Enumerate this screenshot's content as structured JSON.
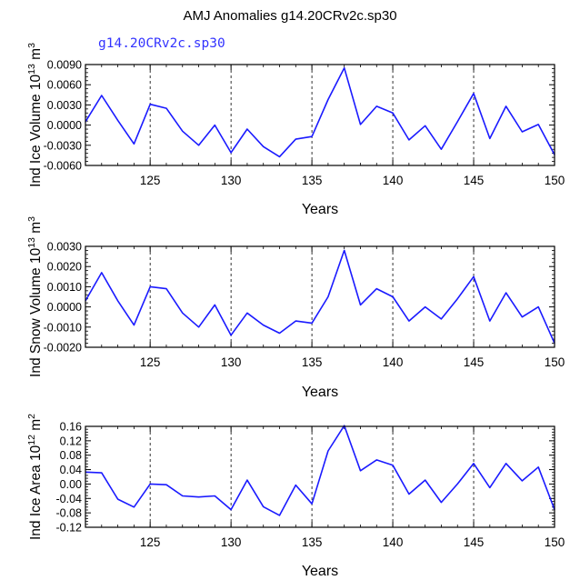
{
  "title": "AMJ Anomalies g14.20CRv2c.sp30",
  "colors": {
    "line": "#1a1aff",
    "legend": "#3333ff",
    "axis": "#000000",
    "gridline": "#000000"
  },
  "chart_data": [
    {
      "type": "line",
      "legend": "g14.20CRv2c.sp30",
      "ylabel_main": "Ind Ice Volume 10",
      "ylabel_exp": "13",
      "ylabel_unit": "m",
      "ylabel_unit_exp": "3",
      "xlabel": "Years",
      "xlim": [
        121,
        150
      ],
      "ylim": [
        -0.006,
        0.009
      ],
      "yticks": [
        -0.006,
        -0.003,
        0.0,
        0.003,
        0.006,
        0.009
      ],
      "ytick_labels": [
        "-0.0060",
        "-0.0030",
        "0.0000",
        "0.0030",
        "0.0060",
        "0.0090"
      ],
      "xticks": [
        125,
        130,
        135,
        140,
        145,
        150
      ],
      "xtick_labels": [
        "125",
        "130",
        "135",
        "140",
        "145",
        "150"
      ],
      "vlines": [
        125,
        130,
        135,
        140,
        145
      ],
      "series": [
        {
          "name": "g14.20CRv2c.sp30",
          "x": [
            121,
            122,
            123,
            124,
            125,
            126,
            127,
            128,
            129,
            130,
            131,
            132,
            133,
            134,
            135,
            136,
            137,
            138,
            139,
            140,
            141,
            142,
            143,
            144,
            145,
            146,
            147,
            148,
            149,
            150
          ],
          "values": [
            0.0005,
            0.0044,
            0.0007,
            -0.0028,
            0.0031,
            0.0025,
            -0.0009,
            -0.003,
            0.0,
            -0.0041,
            -0.0006,
            -0.0032,
            -0.0047,
            -0.0021,
            -0.0017,
            0.0038,
            0.0085,
            0.0001,
            0.0028,
            0.0018,
            -0.0022,
            -0.0001,
            -0.0036,
            0.0005,
            0.0047,
            -0.002,
            0.0028,
            -0.001,
            0.0001,
            -0.0044
          ]
        }
      ]
    },
    {
      "type": "line",
      "ylabel_main": "Ind Snow Volume 10",
      "ylabel_exp": "13",
      "ylabel_unit": "m",
      "ylabel_unit_exp": "3",
      "xlabel": "Years",
      "xlim": [
        121,
        150
      ],
      "ylim": [
        -0.002,
        0.003
      ],
      "yticks": [
        -0.002,
        -0.001,
        0.0,
        0.001,
        0.002,
        0.003
      ],
      "ytick_labels": [
        "-0.0020",
        "-0.0010",
        "0.0000",
        "0.0010",
        "0.0020",
        "0.0030"
      ],
      "xticks": [
        125,
        130,
        135,
        140,
        145,
        150
      ],
      "xtick_labels": [
        "125",
        "130",
        "135",
        "140",
        "145",
        "150"
      ],
      "vlines": [
        125,
        130,
        135,
        140,
        145
      ],
      "series": [
        {
          "name": "g14.20CRv2c.sp30",
          "x": [
            121,
            122,
            123,
            124,
            125,
            126,
            127,
            128,
            129,
            130,
            131,
            132,
            133,
            134,
            135,
            136,
            137,
            138,
            139,
            140,
            141,
            142,
            143,
            144,
            145,
            146,
            147,
            148,
            149,
            150
          ],
          "values": [
            0.0003,
            0.0017,
            0.0003,
            -0.0009,
            0.001,
            0.0009,
            -0.0003,
            -0.001,
            0.0001,
            -0.0014,
            -0.0003,
            -0.0009,
            -0.0013,
            -0.0007,
            -0.0008,
            0.0005,
            0.0028,
            0.0001,
            0.0009,
            0.0005,
            -0.0007,
            0.0,
            -0.0006,
            0.0004,
            0.0015,
            -0.0007,
            0.0007,
            -0.0005,
            0.0,
            -0.0018
          ]
        }
      ]
    },
    {
      "type": "line",
      "ylabel_main": "Ind Ice Area 10",
      "ylabel_exp": "12",
      "ylabel_unit": "m",
      "ylabel_unit_exp": "2",
      "xlabel": "Years",
      "xlim": [
        121,
        150
      ],
      "ylim": [
        -0.12,
        0.16
      ],
      "yticks": [
        -0.12,
        -0.08,
        -0.04,
        0.0,
        0.04,
        0.08,
        0.12,
        0.16
      ],
      "ytick_labels": [
        "-0.12",
        "-0.08",
        "-0.04",
        "0.00",
        "0.04",
        "0.08",
        "0.12",
        "0.16"
      ],
      "xticks": [
        125,
        130,
        135,
        140,
        145,
        150
      ],
      "xtick_labels": [
        "125",
        "130",
        "135",
        "140",
        "145",
        "150"
      ],
      "vlines": [
        125,
        130,
        135,
        140,
        145
      ],
      "series": [
        {
          "name": "g14.20CRv2c.sp30",
          "x": [
            121,
            122,
            123,
            124,
            125,
            126,
            127,
            128,
            129,
            130,
            131,
            132,
            133,
            134,
            135,
            136,
            137,
            138,
            139,
            140,
            141,
            142,
            143,
            144,
            145,
            146,
            147,
            148,
            149,
            150
          ],
          "values": [
            0.033,
            0.031,
            -0.042,
            -0.064,
            0.0,
            -0.002,
            -0.033,
            -0.036,
            -0.033,
            -0.071,
            0.011,
            -0.063,
            -0.087,
            -0.003,
            -0.055,
            0.092,
            0.162,
            0.037,
            0.067,
            0.052,
            -0.028,
            0.011,
            -0.051,
            0.0,
            0.057,
            -0.01,
            0.057,
            0.009,
            0.047,
            -0.071
          ]
        }
      ]
    }
  ]
}
